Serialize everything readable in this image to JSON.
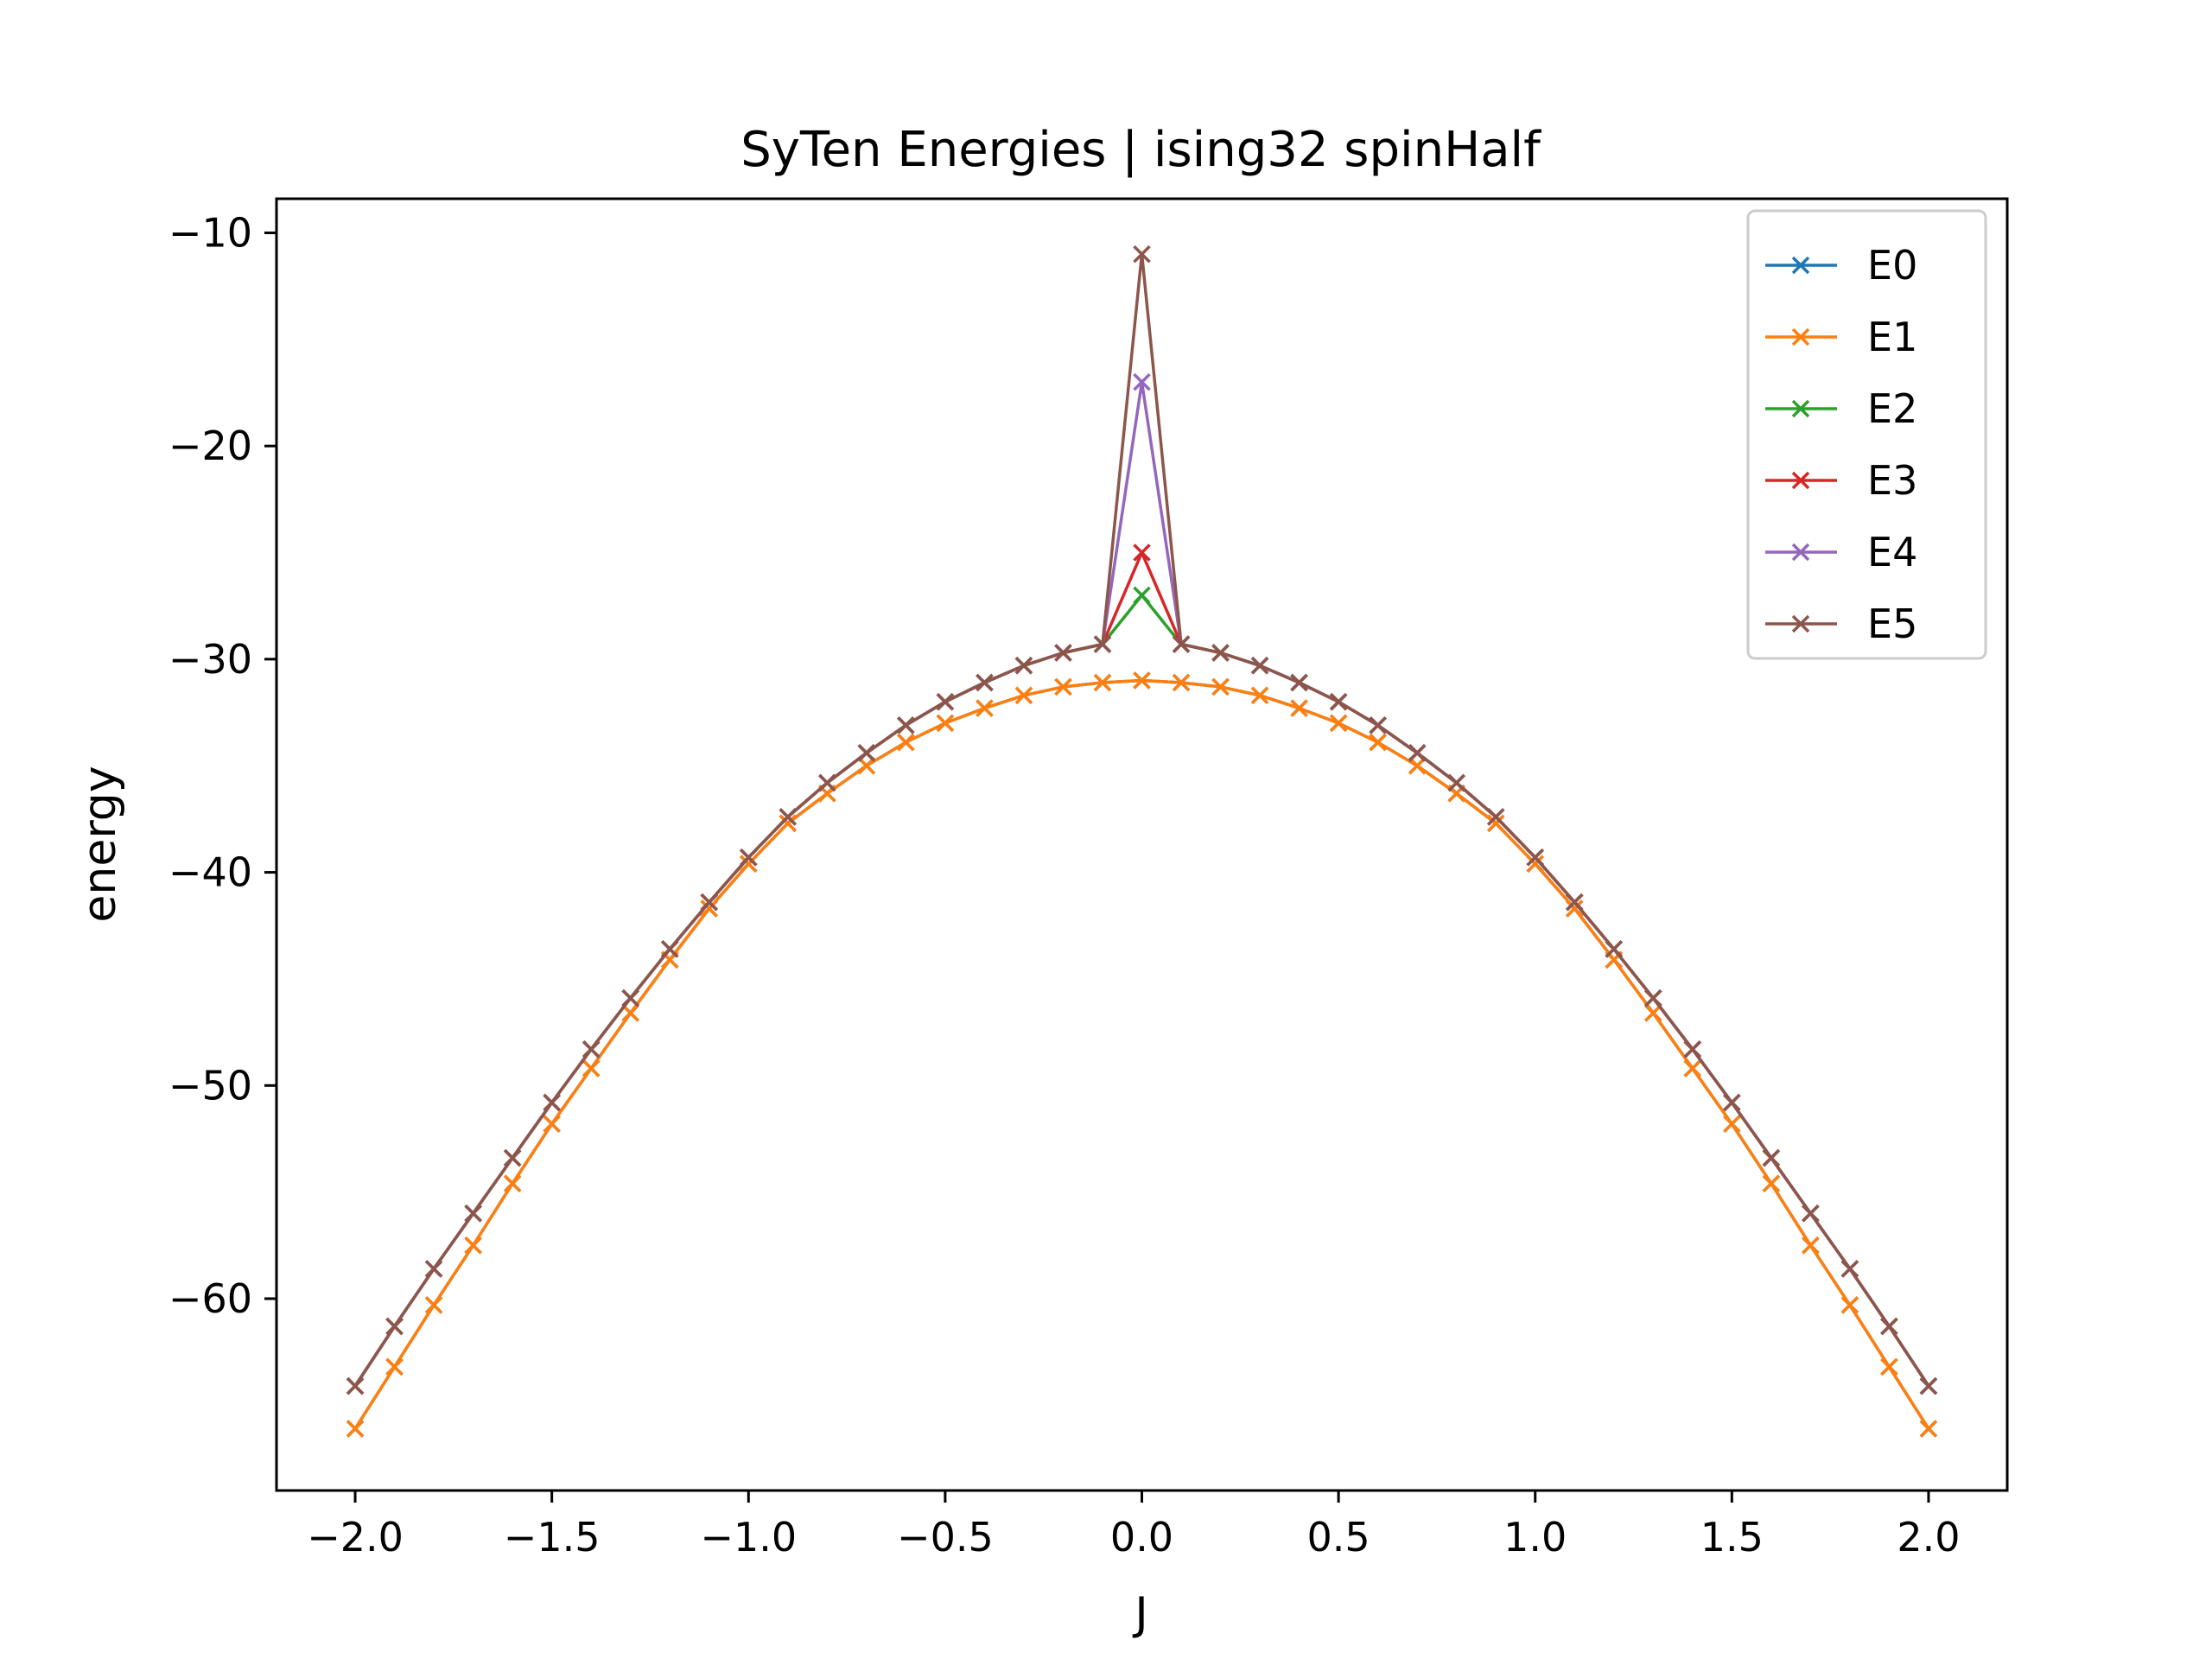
{
  "chart_data": {
    "type": "line",
    "title": "SyTen Energies | ising32 spinHalf",
    "xlabel": "J",
    "ylabel": "energy",
    "xlim": [
      -2.2,
      2.2
    ],
    "ylim": [
      -69.0,
      -8.4
    ],
    "xticks": [
      -2.0,
      -1.5,
      -1.0,
      -0.5,
      0.0,
      0.5,
      1.0,
      1.5,
      2.0
    ],
    "xtick_labels": [
      "−2.0",
      "−1.5",
      "−1.0",
      "−0.5",
      "0.0",
      "0.5",
      "1.0",
      "1.5",
      "2.0"
    ],
    "yticks": [
      -60,
      -50,
      -40,
      -30,
      -20,
      -10
    ],
    "ytick_labels": [
      "−60",
      "−50",
      "−40",
      "−30",
      "−20",
      "−10"
    ],
    "grid": false,
    "legend_position": "top-right",
    "marker": "x",
    "x": [
      -2.0,
      -1.9,
      -1.8,
      -1.7,
      -1.6,
      -1.5,
      -1.4,
      -1.3,
      -1.2,
      -1.1,
      -1.0,
      -0.9,
      -0.8,
      -0.7,
      -0.6,
      -0.5,
      -0.4,
      -0.3,
      -0.2,
      -0.1,
      0.0,
      0.1,
      0.2,
      0.3,
      0.4,
      0.5,
      0.6,
      0.7,
      0.8,
      0.9,
      1.0,
      1.1,
      1.2,
      1.3,
      1.4,
      1.5,
      1.6,
      1.7,
      1.8,
      1.9,
      2.0
    ],
    "series": [
      {
        "name": "E0",
        "color": "#1f77b4",
        "values": [
          -66.1,
          -63.2,
          -60.3,
          -57.5,
          -54.6,
          -51.8,
          -49.2,
          -46.6,
          -44.1,
          -41.7,
          -39.6,
          -37.7,
          -36.3,
          -35.0,
          -33.9,
          -33.0,
          -32.3,
          -31.7,
          -31.3,
          -31.1,
          -31.0,
          -31.1,
          -31.3,
          -31.7,
          -32.3,
          -33.0,
          -33.9,
          -35.0,
          -36.3,
          -37.7,
          -39.6,
          -41.7,
          -44.1,
          -46.6,
          -49.2,
          -51.8,
          -54.6,
          -57.5,
          -60.3,
          -63.2,
          -66.1
        ]
      },
      {
        "name": "E1",
        "color": "#ff7f0e",
        "values": [
          -66.1,
          -63.2,
          -60.3,
          -57.5,
          -54.6,
          -51.8,
          -49.2,
          -46.6,
          -44.1,
          -41.7,
          -39.6,
          -37.7,
          -36.3,
          -35.0,
          -33.9,
          -33.0,
          -32.3,
          -31.7,
          -31.3,
          -31.1,
          -31.0,
          -31.1,
          -31.3,
          -31.7,
          -32.3,
          -33.0,
          -33.9,
          -35.0,
          -36.3,
          -37.7,
          -39.6,
          -41.7,
          -44.1,
          -46.6,
          -49.2,
          -51.8,
          -54.6,
          -57.5,
          -60.3,
          -63.2,
          -66.1
        ]
      },
      {
        "name": "E2",
        "color": "#2ca02c",
        "values": [
          -64.1,
          -61.3,
          -58.6,
          -56.0,
          -53.4,
          -50.8,
          -48.3,
          -45.9,
          -43.6,
          -41.4,
          -39.3,
          -37.4,
          -35.8,
          -34.4,
          -33.1,
          -32.0,
          -31.1,
          -30.3,
          -29.7,
          -29.3,
          -27.0,
          -29.3,
          -29.7,
          -30.3,
          -31.1,
          -32.0,
          -33.1,
          -34.4,
          -35.8,
          -37.4,
          -39.3,
          -41.4,
          -43.6,
          -45.9,
          -48.3,
          -50.8,
          -53.4,
          -56.0,
          -58.6,
          -61.3,
          -64.1
        ]
      },
      {
        "name": "E3",
        "color": "#d62728",
        "values": [
          -64.1,
          -61.3,
          -58.6,
          -56.0,
          -53.4,
          -50.8,
          -48.3,
          -45.9,
          -43.6,
          -41.4,
          -39.3,
          -37.4,
          -35.8,
          -34.4,
          -33.1,
          -32.0,
          -31.1,
          -30.3,
          -29.7,
          -29.3,
          -25.0,
          -29.3,
          -29.7,
          -30.3,
          -31.1,
          -32.0,
          -33.1,
          -34.4,
          -35.8,
          -37.4,
          -39.3,
          -41.4,
          -43.6,
          -45.9,
          -48.3,
          -50.8,
          -53.4,
          -56.0,
          -58.6,
          -61.3,
          -64.1
        ]
      },
      {
        "name": "E4",
        "color": "#9467bd",
        "values": [
          -64.1,
          -61.3,
          -58.6,
          -56.0,
          -53.4,
          -50.8,
          -48.3,
          -45.9,
          -43.6,
          -41.4,
          -39.3,
          -37.4,
          -35.8,
          -34.4,
          -33.1,
          -32.0,
          -31.1,
          -30.3,
          -29.7,
          -29.3,
          -17.0,
          -29.3,
          -29.7,
          -30.3,
          -31.1,
          -32.0,
          -33.1,
          -34.4,
          -35.8,
          -37.4,
          -39.3,
          -41.4,
          -43.6,
          -45.9,
          -48.3,
          -50.8,
          -53.4,
          -56.0,
          -58.6,
          -61.3,
          -64.1
        ]
      },
      {
        "name": "E5",
        "color": "#8c564b",
        "values": [
          -64.1,
          -61.3,
          -58.6,
          -56.0,
          -53.4,
          -50.8,
          -48.3,
          -45.9,
          -43.6,
          -41.4,
          -39.3,
          -37.4,
          -35.8,
          -34.4,
          -33.1,
          -32.0,
          -31.1,
          -30.3,
          -29.7,
          -29.3,
          -11.0,
          -29.3,
          -29.7,
          -30.3,
          -31.1,
          -32.0,
          -33.1,
          -34.4,
          -35.8,
          -37.4,
          -39.3,
          -41.4,
          -43.6,
          -45.9,
          -48.3,
          -50.8,
          -53.4,
          -56.0,
          -58.6,
          -61.3,
          -64.1
        ]
      }
    ]
  }
}
